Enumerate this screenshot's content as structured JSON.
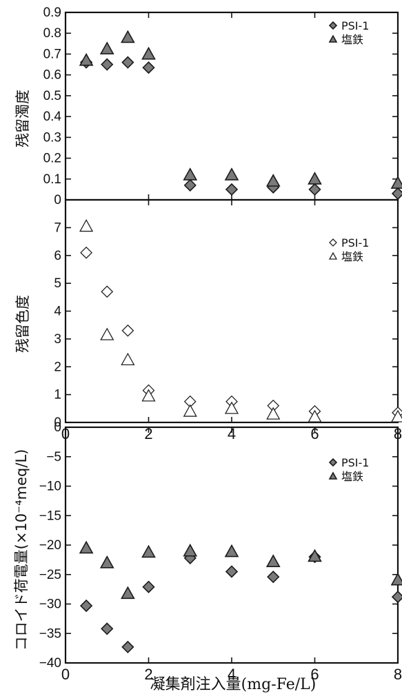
{
  "chart_data": [
    {
      "type": "scatter",
      "ylabel": "残留濁度",
      "ylim": [
        0,
        0.9
      ],
      "yticks": [
        "0",
        "0.1",
        "0.2",
        "0.3",
        "0.4",
        "0.5",
        "0.6",
        "0.7",
        "0.8",
        "0.9"
      ],
      "legend_placement": "top-right",
      "series": [
        {
          "name": "PSI-1",
          "marker": "diamond-filled",
          "x": [
            0.5,
            1,
            1.5,
            2,
            3,
            4,
            5,
            6,
            8
          ],
          "y": [
            0.66,
            0.65,
            0.66,
            0.635,
            0.07,
            0.05,
            0.06,
            0.05,
            0.03
          ]
        },
        {
          "name": "塩鉄",
          "marker": "triangle-filled",
          "x": [
            0.5,
            1,
            1.5,
            2,
            3,
            4,
            5,
            6,
            8
          ],
          "y": [
            0.67,
            0.725,
            0.78,
            0.7,
            0.12,
            0.12,
            0.09,
            0.1,
            0.08
          ]
        }
      ]
    },
    {
      "type": "scatter",
      "ylabel": "残留色度",
      "ylim": [
        0,
        8
      ],
      "yticks": [
        "0",
        "1",
        "2",
        "3",
        "4",
        "5",
        "6",
        "7"
      ],
      "legend_placement": "top-right",
      "series": [
        {
          "name": "PSI-1",
          "marker": "diamond-open",
          "x": [
            0.5,
            1,
            1.5,
            2,
            3,
            4,
            5,
            6,
            8
          ],
          "y": [
            6.1,
            4.7,
            3.3,
            1.15,
            0.75,
            0.75,
            0.6,
            0.4,
            0.35
          ]
        },
        {
          "name": "塩鉄",
          "marker": "triangle-open",
          "x": [
            0.5,
            1,
            1.5,
            2,
            3,
            4,
            5,
            6,
            8
          ],
          "y": [
            7.05,
            3.15,
            2.25,
            0.95,
            0.4,
            0.5,
            0.3,
            0.2,
            0.2
          ]
        }
      ]
    },
    {
      "type": "scatter",
      "ylabel": "コロイド荷電量(×10⁻⁴meq/L)",
      "ylim": [
        -40,
        0
      ],
      "yticks": [
        "0",
        "−5",
        "−10",
        "−15",
        "−20",
        "−25",
        "−30",
        "−35",
        "−40"
      ],
      "legend_placement": "top-right",
      "series": [
        {
          "name": "PSI-1",
          "marker": "diamond-filled",
          "x": [
            0.5,
            1,
            1.5,
            2,
            3,
            4,
            5,
            6,
            8
          ],
          "y": [
            -30.3,
            -34.2,
            -37.3,
            -27.1,
            -22.2,
            -24.5,
            -25.4,
            -22.0,
            -28.8
          ]
        },
        {
          "name": "塩鉄",
          "marker": "triangle-filled",
          "x": [
            0.5,
            1,
            1.5,
            2,
            3,
            4,
            5,
            6,
            8
          ],
          "y": [
            -20.5,
            -23.0,
            -28.2,
            -21.2,
            -21.0,
            -21.1,
            -22.8,
            -21.9,
            -25.9
          ]
        }
      ]
    }
  ],
  "shared_x": {
    "xlim": [
      0,
      8
    ],
    "xticks": [
      "0",
      "2",
      "4",
      "6",
      "8"
    ],
    "xlabel": "凝集剤注入量(mg-Fe/L)"
  }
}
